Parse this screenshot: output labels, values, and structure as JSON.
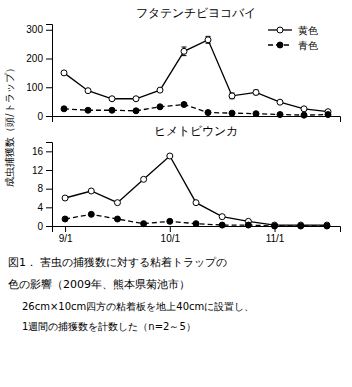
{
  "chart_data": [
    {
      "type": "line",
      "title": "フタテンチビヨコバイ",
      "ylabel": "成虫捕獲数（頭/トラップ）",
      "categories": [
        null,
        null,
        null,
        null,
        null,
        null,
        null,
        null,
        null,
        null,
        null,
        null
      ],
      "series": [
        {
          "name": "黄色",
          "color": "#000000",
          "marker": "open_circle",
          "line_style": "solid",
          "values": [
            150,
            88,
            60,
            60,
            90,
            225,
            265,
            70,
            82,
            48,
            25,
            15
          ],
          "errors": [
            0,
            0,
            0,
            0,
            0,
            15,
            12,
            10,
            8,
            0,
            0,
            0
          ]
        },
        {
          "name": "青色",
          "color": "#000000",
          "marker": "circle",
          "line_style": "dashed",
          "values": [
            25,
            20,
            20,
            18,
            32,
            40,
            12,
            10,
            8,
            5,
            3,
            5
          ]
        }
      ],
      "ylim": [
        0,
        320
      ],
      "yticks": [
        0,
        100,
        200,
        300
      ],
      "grid": false,
      "legend": "upper right",
      "tick_labels": "y"
    },
    {
      "type": "line",
      "title": "ヒメトビウンカ",
      "categories": [
        "9/1",
        null,
        null,
        null,
        "10/1",
        null,
        null,
        null,
        "11/1",
        null,
        null
      ],
      "series": [
        {
          "color": "#000000",
          "marker": "open_circle",
          "line_style": "solid",
          "values": [
            6,
            7.5,
            5,
            10,
            15,
            5,
            2,
            1,
            0.2,
            0.2,
            0.2
          ]
        },
        {
          "color": "#000000",
          "marker": "circle",
          "line_style": "dashed",
          "values": [
            1.5,
            2.5,
            1.5,
            0.5,
            1,
            0.5,
            0.2,
            0.2,
            0,
            0,
            0
          ]
        }
      ],
      "ylim": [
        0,
        18
      ],
      "yticks": [
        0,
        4,
        8,
        12,
        16
      ],
      "grid": false,
      "annotations": [
        "図1． 害虫の捕獲数に対する粘着トラップの",
        "色の影響（2009年、熊本県菊池市）",
        "26cm×10cm四方の粘着板を地上40cmに設置し、",
        "1週間の捕獲数を計数した（n=2～5）"
      ]
    }
  ]
}
